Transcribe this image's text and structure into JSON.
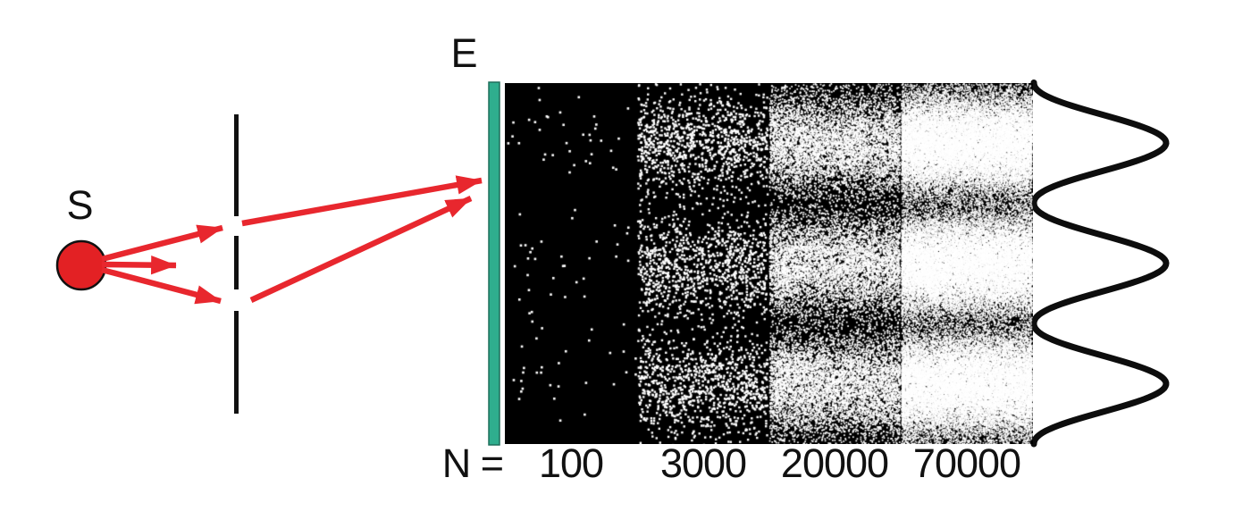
{
  "labels": {
    "source": "S",
    "screen": "E",
    "count_prefix": "N ="
  },
  "panels": {
    "items": [
      {
        "label": "100",
        "count": 100
      },
      {
        "label": "3000",
        "count": 3000
      },
      {
        "label": "20000",
        "count": 20000
      },
      {
        "label": "70000",
        "count": 70000
      }
    ]
  },
  "colors": {
    "ray_red": "#e8272e",
    "source_fill": "#e32124",
    "outline_black": "#111111",
    "screen_teal": "#2fae8e",
    "screen_edge": "#1f6f5c",
    "panel_background": "#000000",
    "dot_white": "#ffffff",
    "curve_black": "#0d0d0d"
  }
}
